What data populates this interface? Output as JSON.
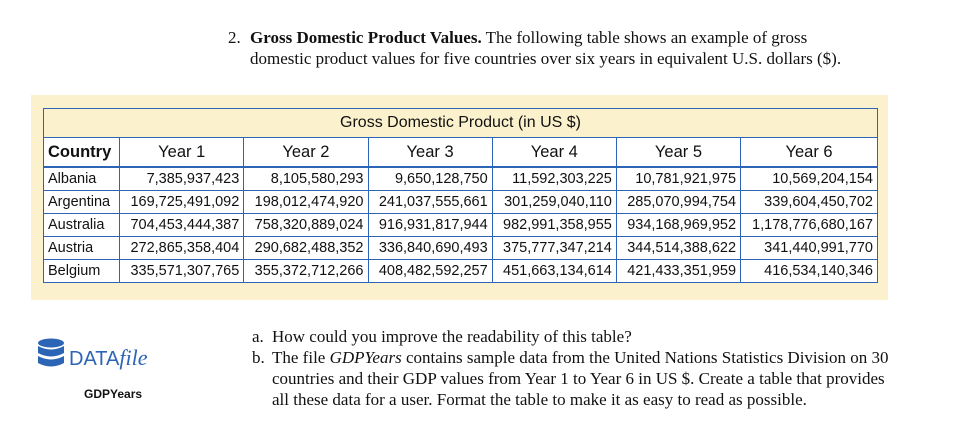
{
  "problem": {
    "number": "2.",
    "title": "Gross Domestic Product Values.",
    "line1": "The following table shows an example of gross",
    "line2": "domestic product values for five countries over six years in equivalent U.S. dollars ($)."
  },
  "table": {
    "caption": "Gross Domestic Product (in US $)",
    "headers": [
      "Country",
      "Year 1",
      "Year 2",
      "Year 3",
      "Year 4",
      "Year 5",
      "Year 6"
    ],
    "rows": [
      [
        "Albania",
        "7,385,937,423",
        "8,105,580,293",
        "9,650,128,750",
        "11,592,303,225",
        "10,781,921,975",
        "10,569,204,154"
      ],
      [
        "Argentina",
        "169,725,491,092",
        "198,012,474,920",
        "241,037,555,661",
        "301,259,040,110",
        "285,070,994,754",
        "339,604,450,702"
      ],
      [
        "Australia",
        "704,453,444,387",
        "758,320,889,024",
        "916,931,817,944",
        "982,991,358,955",
        "934,168,969,952",
        "1,178,776,680,167"
      ],
      [
        "Austria",
        "272,865,358,404",
        "290,682,488,352",
        "336,840,690,493",
        "375,777,347,214",
        "344,514,388,622",
        "341,440,991,770"
      ],
      [
        "Belgium",
        "335,571,307,765",
        "355,372,712,266",
        "408,482,592,257",
        "451,663,134,614",
        "421,433,351,959",
        "416,534,140,346"
      ]
    ]
  },
  "datafile": {
    "label_upper": "DATA",
    "label_italic": "file",
    "filename": "GDPYears",
    "icon": "database-icon",
    "color": "#2c64b6"
  },
  "questions": [
    {
      "letter": "a.",
      "text": "How could you improve the readability of this table?"
    },
    {
      "letter": "b.",
      "pre": "The file ",
      "file": "GDPYears",
      "post": " contains sample data from the United Nations Statistics Division on 30 countries and their GDP values from Year 1 to Year 6 in US $. Create a table that provides all these data for a user. Format the table to make it as easy to read as possible."
    }
  ]
}
